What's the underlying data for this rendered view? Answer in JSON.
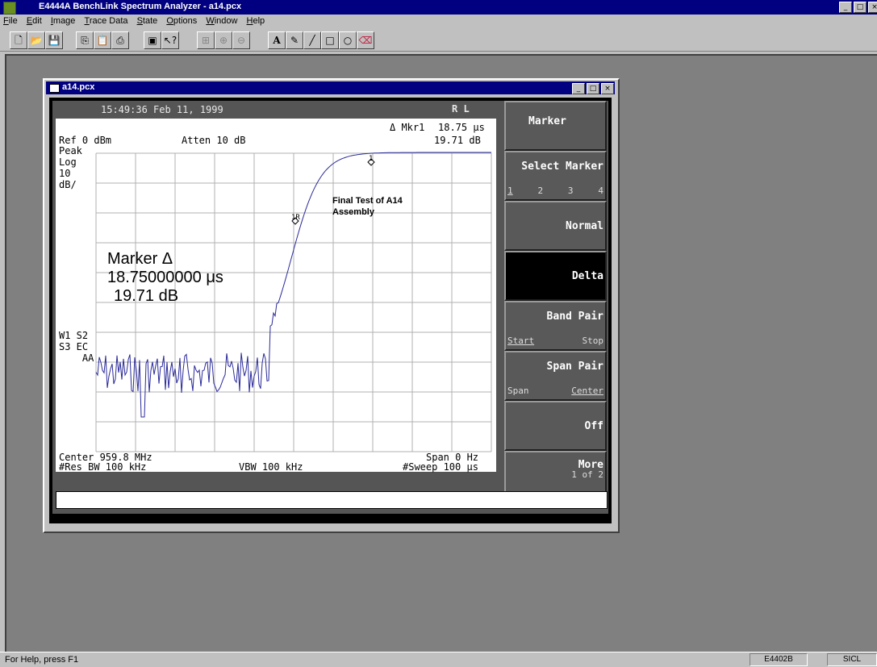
{
  "app": {
    "title": "E4444A BenchLink Spectrum Analyzer  - a14.pcx",
    "window_buttons": [
      "_",
      "□",
      "×"
    ]
  },
  "menu": [
    "File",
    "Edit",
    "Image",
    "Trace Data",
    "State",
    "Options",
    "Window",
    "Help"
  ],
  "toolbar": {
    "buttons": [
      "new-icon",
      "open-icon",
      "save-icon",
      "copy-icon",
      "paste-icon",
      "print-icon",
      "capture-icon",
      "help-icon",
      "zoom-fit-icon",
      "zoom-in-icon",
      "zoom-out-icon",
      "text-tool-icon",
      "pencil-icon",
      "line-icon",
      "rectangle-icon",
      "ellipse-icon",
      "eraser-icon"
    ]
  },
  "child_window": {
    "title": "a14.pcx",
    "buttons": [
      "_",
      "□",
      "×"
    ]
  },
  "screen": {
    "timestamp": "15:49:36  Feb 11, 1999",
    "rl": "R L",
    "marker_readout_label": "Δ Mkr1",
    "marker_readout_time": "18.75 μs",
    "marker_readout_db": "19.71 dB",
    "ref_level": "Ref 0 dBm",
    "atten": "Atten 10 dB",
    "left_annot": [
      "Peak",
      "Log",
      "10",
      "dB/"
    ],
    "trace_annot": [
      "W1  S2",
      "S3  EC",
      "    AA"
    ],
    "big_marker_label": "Marker Δ",
    "big_marker_time": "18.75000000 μs",
    "big_marker_db": "19.71 dB",
    "annotation": [
      "Final Test of A14",
      "Assembly"
    ],
    "marker1_label": "1",
    "marker1r_label": "1R",
    "center": "Center 959.8 MHz",
    "span": "Span 0 Hz",
    "res_bw": "#Res BW 100 kHz",
    "vbw": "VBW 100 kHz",
    "sweep": "#Sweep 100 μs"
  },
  "softkeys": [
    {
      "label": "Marker",
      "sub": []
    },
    {
      "label": "Select Marker",
      "sub": [
        "1",
        "2",
        "3",
        "4"
      ]
    },
    {
      "label": "Normal",
      "sub": []
    },
    {
      "label": "Delta",
      "sub": [],
      "active": true
    },
    {
      "label": "Band Pair",
      "sub": [
        "Start",
        "Stop"
      ]
    },
    {
      "label": "Span Pair",
      "sub": [
        "Span",
        "Center"
      ]
    },
    {
      "label": "Off",
      "sub": []
    },
    {
      "label": "More",
      "sub": [
        "1 of 2"
      ]
    }
  ],
  "status": {
    "help": "For Help, press F1",
    "panel1": "E4402B",
    "panel2": "SICL"
  },
  "colors": {
    "trace": "#2a2a9a",
    "titlebar": "#000080",
    "active_softkey": "#000000"
  }
}
